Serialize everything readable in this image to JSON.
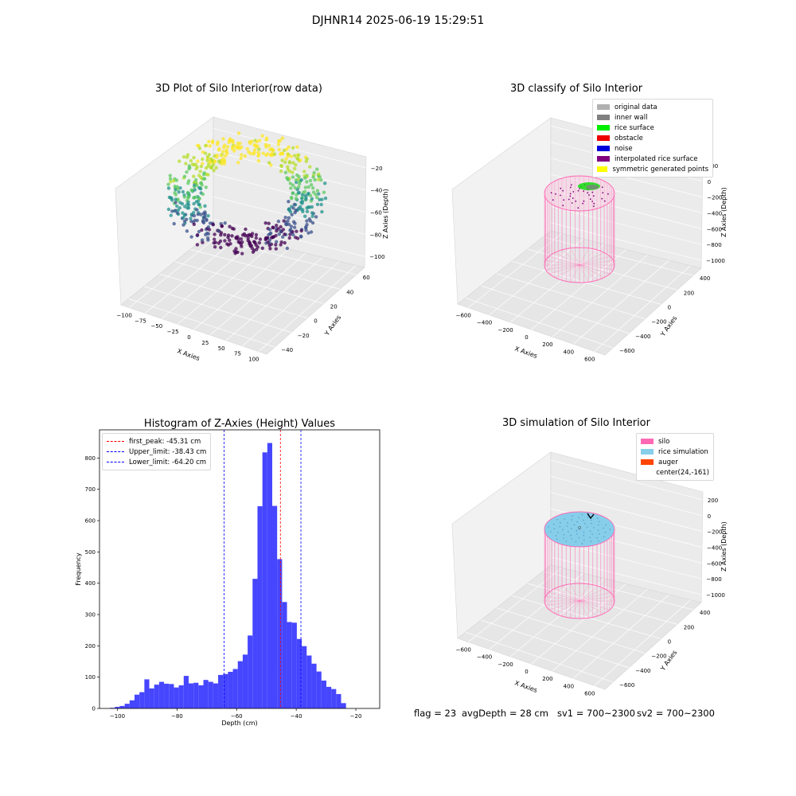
{
  "figure": {
    "suptitle": "DJHNR14 2025-06-19 15:29:51"
  },
  "panels": {
    "raw": {
      "title": "3D Plot of Silo Interior(row data)",
      "xlabel": "X Axies",
      "ylabel": "Y Axies",
      "zlabel": "Z Axies (Depth)",
      "xticks": [
        "−100",
        "−75",
        "−50",
        "−25",
        "0",
        "25",
        "50",
        "75",
        "100"
      ],
      "yticks": [
        "−40",
        "−20",
        "0",
        "20",
        "40",
        "60"
      ],
      "zticks": [
        "−100",
        "−80",
        "−60",
        "−40",
        "−20"
      ]
    },
    "classify": {
      "title": "3D classify of Silo Interior",
      "xlabel": "X Axies",
      "ylabel": "Y Axies",
      "zlabel": "Z Axies (Depth)",
      "xticks": [
        "−600",
        "−400",
        "−200",
        "0",
        "200",
        "400",
        "600"
      ],
      "yticks": [
        "−600",
        "−400",
        "−200",
        "0",
        "200",
        "400"
      ],
      "zticks": [
        "−1000",
        "−800",
        "−600",
        "−400",
        "−200",
        "0",
        "200"
      ],
      "legend": [
        {
          "label": "original data",
          "color": "#b0b0b0"
        },
        {
          "label": "inner wall",
          "color": "#808080"
        },
        {
          "label": "rice surface",
          "color": "#00ee00"
        },
        {
          "label": "obstacle",
          "color": "#ee0000"
        },
        {
          "label": "noise",
          "color": "#0000dd"
        },
        {
          "label": "interpolated rice surface",
          "color": "#800080"
        },
        {
          "label": "symmetric generated points",
          "color": "#ffff00"
        }
      ]
    },
    "simulation": {
      "title": "3D simulation of Silo Interior",
      "xlabel": "X Axies",
      "ylabel": "Y Axies",
      "zlabel": "Z Axies (Depth)",
      "xticks": [
        "−600",
        "−400",
        "−200",
        "0",
        "200",
        "400",
        "600"
      ],
      "yticks": [
        "−600",
        "−400",
        "−200",
        "0",
        "200",
        "400"
      ],
      "zticks": [
        "−1000",
        "−800",
        "−600",
        "−400",
        "−200",
        "0",
        "200"
      ],
      "legend": [
        {
          "label": "silo",
          "color": "#ff69b4"
        },
        {
          "label": "rice simulation",
          "color": "#87ceeb"
        },
        {
          "label": "auger",
          "color": "#ff4500"
        },
        {
          "label": "center(24,-161)",
          "color": ""
        }
      ]
    }
  },
  "chart_data": {
    "type": "bar",
    "title": "Histogram of Z-Axies (Height) Values",
    "xlabel": "Depth (cm)",
    "ylabel": "Frequency",
    "xlim": [
      -106,
      -12
    ],
    "ylim": [
      0,
      890
    ],
    "xticks": [
      -100,
      -80,
      -60,
      -40,
      -20
    ],
    "xtick_labels": [
      "−100",
      "−80",
      "−60",
      "−40",
      "−20"
    ],
    "yticks": [
      0,
      100,
      200,
      300,
      400,
      500,
      600,
      700,
      800
    ],
    "bin_start": -102.5,
    "bin_width": 1.65,
    "counts": [
      2,
      5,
      8,
      15,
      26,
      44,
      52,
      93,
      64,
      76,
      85,
      79,
      78,
      67,
      74,
      104,
      80,
      82,
      74,
      91,
      85,
      80,
      107,
      110,
      117,
      126,
      151,
      172,
      233,
      414,
      646,
      818,
      848,
      647,
      477,
      340,
      276,
      274,
      222,
      199,
      169,
      143,
      118,
      89,
      69,
      62,
      46,
      17
    ],
    "bar_color": "#4646ff",
    "reference_lines": [
      {
        "label": "first_peak: -45.31 cm",
        "value": -45.31,
        "color": "#ff0000"
      },
      {
        "label": "Upper_limit: -38.43 cm",
        "value": -38.43,
        "color": "#0000ff"
      },
      {
        "label": "Lower_limit: -64.20 cm",
        "value": -64.2,
        "color": "#0000ff"
      }
    ]
  },
  "status": {
    "flag": "flag = 23",
    "avg_depth": "avgDepth = 28 cm",
    "sv1": "sv1 = 700~2300",
    "sv2": "sv2 = 700~2300"
  }
}
